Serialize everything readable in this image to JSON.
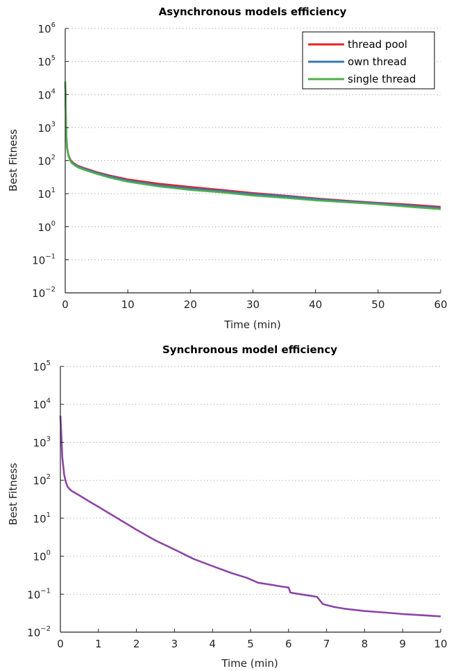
{
  "chart_data": [
    {
      "type": "line",
      "title": "Asynchronous models efficiency",
      "xlabel": "Time (min)",
      "ylabel": "Best Fitness",
      "xlim": [
        0,
        60
      ],
      "ylim": [
        0.01,
        1000000
      ],
      "yscale": "log",
      "grid": "dotted",
      "legend": "top-right",
      "x_ticks": [
        "0",
        "10",
        "20",
        "30",
        "40",
        "50",
        "60"
      ],
      "y_ticks": [
        {
          "base": "10",
          "exp": "6"
        },
        {
          "base": "10",
          "exp": "5"
        },
        {
          "base": "10",
          "exp": "4"
        },
        {
          "base": "10",
          "exp": "3"
        },
        {
          "base": "10",
          "exp": "2"
        },
        {
          "base": "10",
          "exp": "1"
        },
        {
          "base": "10",
          "exp": "0"
        },
        {
          "base": "10",
          "exp": "−1"
        },
        {
          "base": "10",
          "exp": "−2"
        }
      ],
      "series": [
        {
          "name": "thread pool",
          "color": "#e8211f",
          "x": [
            0,
            0.05,
            0.1,
            0.2,
            0.3,
            0.5,
            0.8,
            1,
            1.5,
            2,
            3,
            4,
            5,
            7,
            10,
            15,
            20,
            25,
            30,
            35,
            40,
            45,
            50,
            55,
            60
          ],
          "y": [
            22000,
            12000,
            2000,
            500,
            250,
            150,
            110,
            95,
            80,
            70,
            60,
            52,
            45,
            36,
            27,
            20,
            16,
            13,
            10.5,
            8.8,
            7.2,
            6.1,
            5.3,
            4.7,
            4.0
          ]
        },
        {
          "name": "own thread",
          "color": "#3a77b8",
          "x": [
            0,
            0.05,
            0.1,
            0.2,
            0.3,
            0.5,
            0.8,
            1,
            1.5,
            2,
            3,
            4,
            5,
            7,
            10,
            15,
            20,
            25,
            30,
            35,
            40,
            45,
            50,
            55,
            60
          ],
          "y": [
            20000,
            10000,
            1800,
            480,
            240,
            145,
            105,
            90,
            76,
            67,
            57,
            50,
            43,
            34,
            25,
            18,
            14.5,
            12,
            9.8,
            8.4,
            6.9,
            5.9,
            5.1,
            4.4,
            3.7
          ]
        },
        {
          "name": "single thread",
          "color": "#4fb04a",
          "x": [
            0,
            0.05,
            0.1,
            0.2,
            0.3,
            0.5,
            0.8,
            1,
            1.5,
            2,
            3,
            4,
            5,
            7,
            10,
            15,
            20,
            25,
            30,
            35,
            40,
            45,
            50,
            55,
            60
          ],
          "y": [
            25000,
            11000,
            1900,
            460,
            230,
            140,
            100,
            86,
            72,
            63,
            53,
            46,
            40,
            31,
            23,
            16.5,
            13,
            11,
            8.8,
            7.5,
            6.3,
            5.5,
            4.8,
            4.0,
            3.4
          ]
        }
      ]
    },
    {
      "type": "line",
      "title": "Synchronous model efficiency",
      "xlabel": "Time (min)",
      "ylabel": "Best Fitness",
      "xlim": [
        0,
        10
      ],
      "ylim": [
        0.01,
        100000
      ],
      "yscale": "log",
      "grid": "dotted",
      "x_ticks": [
        "0",
        "1",
        "2",
        "3",
        "4",
        "5",
        "6",
        "7",
        "8",
        "9",
        "10"
      ],
      "y_ticks": [
        {
          "base": "10",
          "exp": "5"
        },
        {
          "base": "10",
          "exp": "4"
        },
        {
          "base": "10",
          "exp": "3"
        },
        {
          "base": "10",
          "exp": "2"
        },
        {
          "base": "10",
          "exp": "1"
        },
        {
          "base": "10",
          "exp": "0"
        },
        {
          "base": "10",
          "exp": "−1"
        },
        {
          "base": "10",
          "exp": "−2"
        }
      ],
      "series": [
        {
          "color": "#8b45a6",
          "x": [
            0,
            0.02,
            0.05,
            0.1,
            0.15,
            0.2,
            0.3,
            0.5,
            0.75,
            1,
            1.5,
            2,
            2.5,
            3,
            3.5,
            4,
            4.5,
            4.9,
            5.2,
            5.5,
            5.8,
            6.0,
            6.05,
            6.3,
            6.6,
            6.75,
            6.9,
            7.2,
            7.5,
            8,
            8.5,
            9,
            9.5,
            10
          ],
          "y": [
            5000,
            2000,
            400,
            140,
            85,
            65,
            52,
            40,
            28,
            20,
            10,
            5,
            2.6,
            1.5,
            0.85,
            0.55,
            0.36,
            0.27,
            0.2,
            0.18,
            0.16,
            0.15,
            0.11,
            0.1,
            0.09,
            0.085,
            0.055,
            0.046,
            0.041,
            0.036,
            0.033,
            0.03,
            0.028,
            0.026
          ]
        }
      ]
    }
  ]
}
